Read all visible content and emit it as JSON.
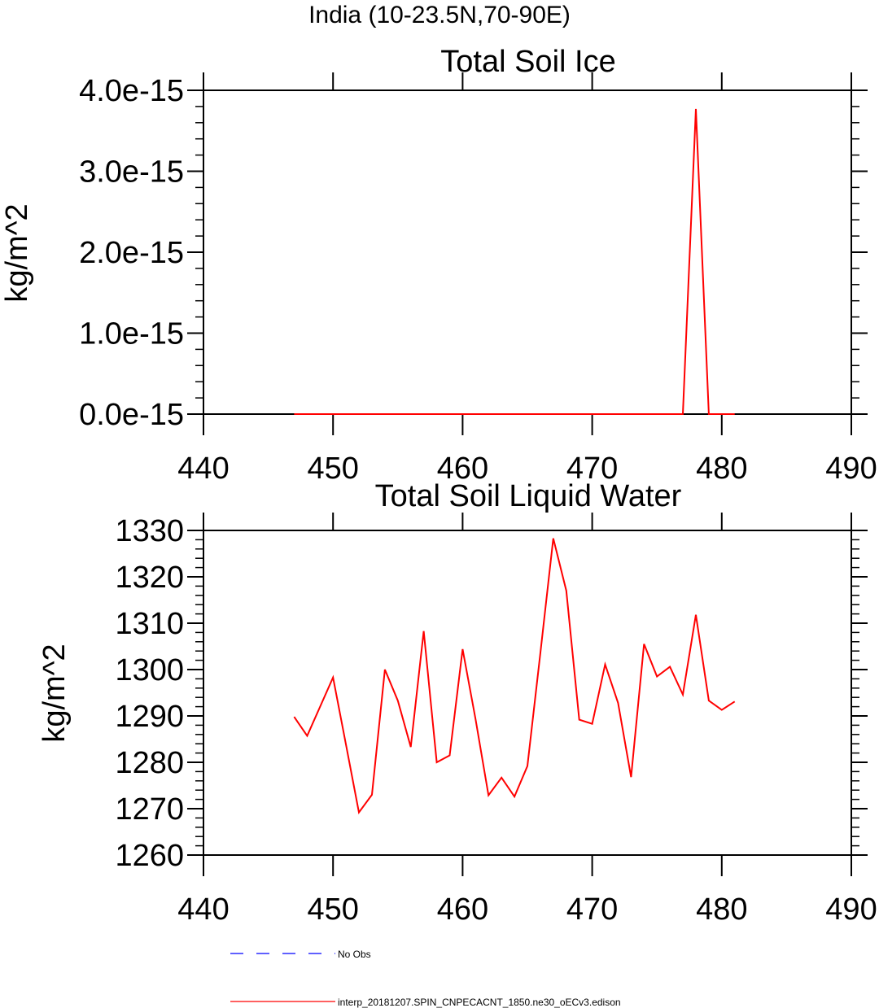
{
  "figure": {
    "title": "India (10-23.5N,70-90E)"
  },
  "chart_data": [
    {
      "type": "line",
      "title": "Total Soil Ice",
      "xlabel": "",
      "ylabel": "kg/m^2",
      "xlim": [
        440,
        490
      ],
      "ylim": [
        0,
        4e-15
      ],
      "xticks": [
        440,
        450,
        460,
        470,
        480,
        490
      ],
      "xtick_labels": [
        "440",
        "450",
        "460",
        "470",
        "480",
        "490"
      ],
      "yticks": [
        0,
        1e-15,
        2e-15,
        3e-15,
        4e-15
      ],
      "ytick_labels": [
        "0.0e-15",
        "1.0e-15",
        "2.0e-15",
        "3.0e-15",
        "4.0e-15"
      ],
      "grid": false,
      "series": [
        {
          "name": "interp_20181207.SPIN_CNPECACNT_1850.ne30_oECv3.edison",
          "color": "#ff0000",
          "x": [
            447,
            448,
            449,
            450,
            451,
            452,
            453,
            454,
            455,
            456,
            457,
            458,
            459,
            460,
            461,
            462,
            463,
            464,
            465,
            466,
            467,
            468,
            469,
            470,
            471,
            472,
            473,
            474,
            475,
            476,
            477,
            478,
            479,
            480,
            481
          ],
          "y": [
            0,
            0,
            0,
            0,
            0,
            0,
            0,
            0,
            0,
            0,
            0,
            0,
            0,
            0,
            0,
            0,
            0,
            0,
            0,
            0,
            0,
            0,
            0,
            0,
            0,
            0,
            0,
            0,
            0,
            0,
            0,
            3.77e-15,
            0,
            0,
            0
          ]
        }
      ]
    },
    {
      "type": "line",
      "title": "Total Soil Liquid Water",
      "xlabel": "",
      "ylabel": "kg/m^2",
      "xlim": [
        440,
        490
      ],
      "ylim": [
        1260,
        1330
      ],
      "xticks": [
        440,
        450,
        460,
        470,
        480,
        490
      ],
      "xtick_labels": [
        "440",
        "450",
        "460",
        "470",
        "480",
        "490"
      ],
      "yticks": [
        1260,
        1270,
        1280,
        1290,
        1300,
        1310,
        1320,
        1330
      ],
      "ytick_labels": [
        "1260",
        "1270",
        "1280",
        "1290",
        "1300",
        "1310",
        "1320",
        "1330"
      ],
      "grid": false,
      "series": [
        {
          "name": "interp_20181207.SPIN_CNPECACNT_1850.ne30_oECv3.edison",
          "color": "#ff0000",
          "x": [
            447,
            448,
            449,
            450,
            451,
            452,
            453,
            454,
            455,
            456,
            457,
            458,
            459,
            460,
            461,
            462,
            463,
            464,
            465,
            466,
            467,
            468,
            469,
            470,
            471,
            472,
            473,
            474,
            475,
            476,
            477,
            478,
            479,
            480,
            481
          ],
          "y": [
            1289.8,
            1285.7,
            1292.0,
            1298.3,
            1283.8,
            1269.2,
            1273.0,
            1300.0,
            1293.3,
            1283.3,
            1308.3,
            1280.0,
            1281.5,
            1304.4,
            1289.3,
            1272.9,
            1276.7,
            1272.6,
            1279.2,
            1303.5,
            1328.3,
            1317.0,
            1289.2,
            1288.3,
            1301.1,
            1292.8,
            1276.8,
            1305.5,
            1298.5,
            1300.6,
            1294.6,
            1311.8,
            1293.3,
            1291.3,
            1293.1
          ]
        }
      ]
    }
  ],
  "legend": {
    "placement": "bottom",
    "entries": [
      {
        "label": "No Obs",
        "color": "#0000ff",
        "style": "dashed"
      },
      {
        "label": "interp_20181207.SPIN_CNPECACNT_1850.ne30_oECv3.edison",
        "color": "#ff0000",
        "style": "solid"
      }
    ]
  }
}
